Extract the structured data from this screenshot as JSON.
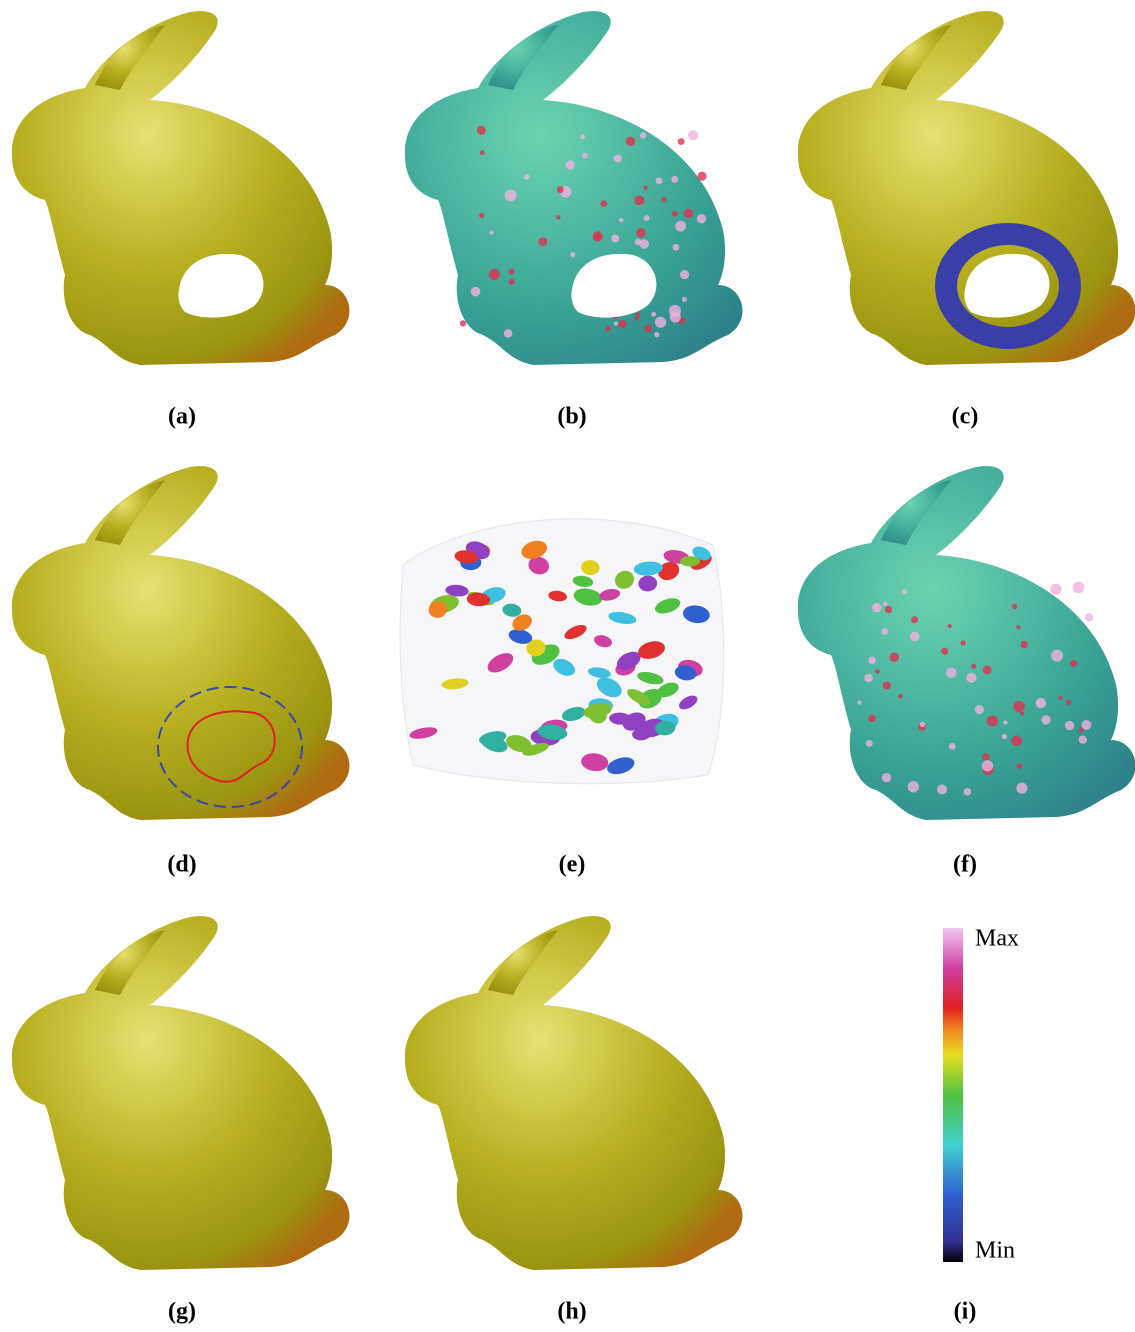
{
  "panels": [
    {
      "label": "(a)"
    },
    {
      "label": "(b)"
    },
    {
      "label": "(c)"
    },
    {
      "label": "(d)"
    },
    {
      "label": "(e)"
    },
    {
      "label": "(f)"
    },
    {
      "label": "(g)"
    },
    {
      "label": "(h)"
    },
    {
      "label": "(i)"
    }
  ],
  "colorbar": {
    "max_label": "Max",
    "min_label": "Min"
  }
}
